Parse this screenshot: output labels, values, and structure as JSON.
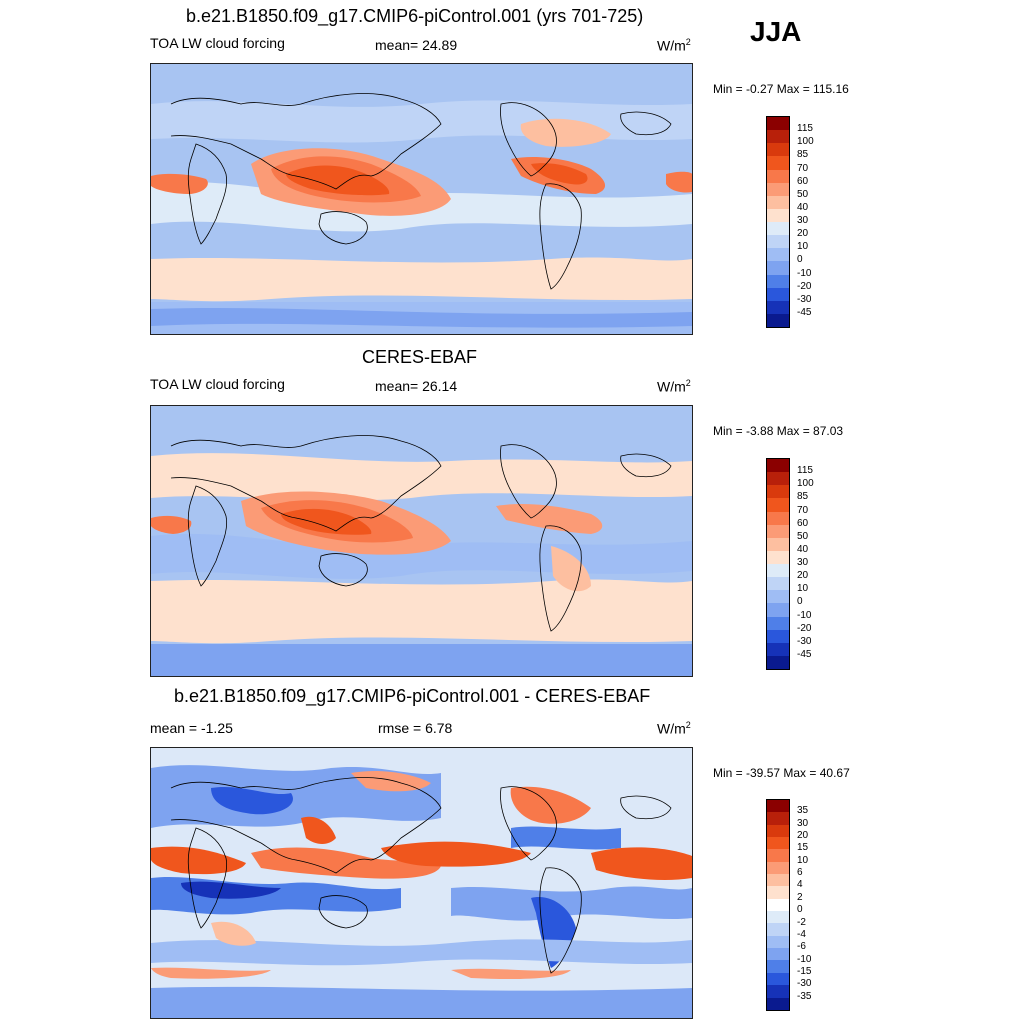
{
  "season": "JJA",
  "panels": [
    {
      "title": "b.e21.B1850.f09_g17.CMIP6-piControl.001 (yrs 701-725)",
      "left_label": "TOA LW cloud forcing",
      "stat_label": "mean=  24.89",
      "units": "W/m",
      "units_sup": "2",
      "minmax": "Min =  -0.27 Max = 115.16",
      "colorbar_labels": [
        "115",
        "100",
        "85",
        "70",
        "60",
        "50",
        "40",
        "30",
        "20",
        "10",
        "0",
        "-10",
        "-20",
        "-30",
        "-45"
      ],
      "colorbar_colors": [
        "#8b0000",
        "#b8200a",
        "#d93a0d",
        "#f0561d",
        "#f8784a",
        "#fb9b76",
        "#fdbfa0",
        "#fee1ce",
        "#deebf8",
        "#bfd4f6",
        "#9fbdf4",
        "#7ea3f0",
        "#4f7fe8",
        "#2a57dc",
        "#1632b8",
        "#0a1a8f"
      ],
      "base_color": "#a8c4f2"
    },
    {
      "title": "CERES-EBAF",
      "left_label": "TOA LW cloud forcing",
      "stat_label": "mean=  26.14",
      "units": "W/m",
      "units_sup": "2",
      "minmax": "Min =  -3.88 Max =  87.03",
      "colorbar_labels": [
        "115",
        "100",
        "85",
        "70",
        "60",
        "50",
        "40",
        "30",
        "20",
        "10",
        "0",
        "-10",
        "-20",
        "-30",
        "-45"
      ],
      "colorbar_colors": [
        "#8b0000",
        "#b8200a",
        "#d93a0d",
        "#f0561d",
        "#f8784a",
        "#fb9b76",
        "#fdbfa0",
        "#fee1ce",
        "#deebf8",
        "#bfd4f6",
        "#9fbdf4",
        "#7ea3f0",
        "#4f7fe8",
        "#2a57dc",
        "#1632b8",
        "#0a1a8f"
      ],
      "base_color": "#a8c4f2"
    },
    {
      "title": "b.e21.B1850.f09_g17.CMIP6-piControl.001 - CERES-EBAF",
      "left_label": "mean =  -1.25",
      "stat_label": "rmse =   6.78",
      "units": "W/m",
      "units_sup": "2",
      "minmax": "Min = -39.57 Max =  40.67",
      "colorbar_labels": [
        "35",
        "30",
        "20",
        "15",
        "10",
        "6",
        "4",
        "2",
        "0",
        "-2",
        "-4",
        "-6",
        "-10",
        "-15",
        "-30",
        "-35"
      ],
      "colorbar_colors": [
        "#8b0000",
        "#b8200a",
        "#d93a0d",
        "#f0561d",
        "#f8784a",
        "#fb9b76",
        "#fdbfa0",
        "#fee1ce",
        "#ffffff",
        "#deebf8",
        "#bfd4f6",
        "#9fbdf4",
        "#7ea3f0",
        "#4f7fe8",
        "#2a57dc",
        "#1632b8",
        "#0a1a8f"
      ],
      "base_color": "#dce8f8"
    }
  ]
}
